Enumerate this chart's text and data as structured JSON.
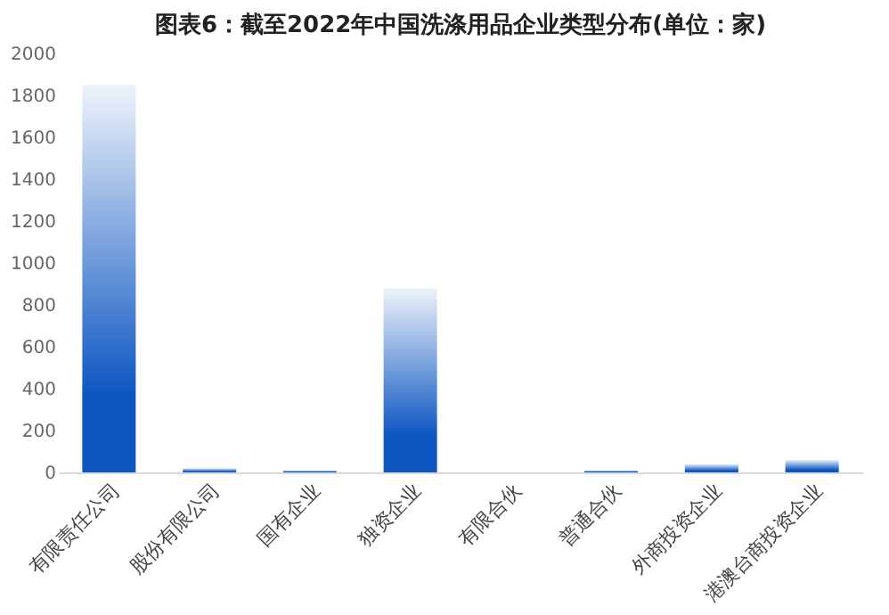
{
  "chart_data": {
    "type": "bar",
    "title": "图表6：截至2022年中国洗涤用品企业类型分布(单位：家)",
    "categories": [
      "有限责任公司",
      "股份有限公司",
      "国有企业",
      "独资企业",
      "有限合伙",
      "普通合伙",
      "外商投资企业",
      "港澳台商投资企业"
    ],
    "values": [
      1850,
      20,
      10,
      880,
      null,
      10,
      40,
      60
    ],
    "color": "#0d56c2",
    "ylim": [
      0,
      2000
    ],
    "yticks": [
      0,
      200,
      400,
      600,
      800,
      1000,
      1200,
      1400,
      1600,
      1800,
      2000
    ],
    "grid": false
  }
}
